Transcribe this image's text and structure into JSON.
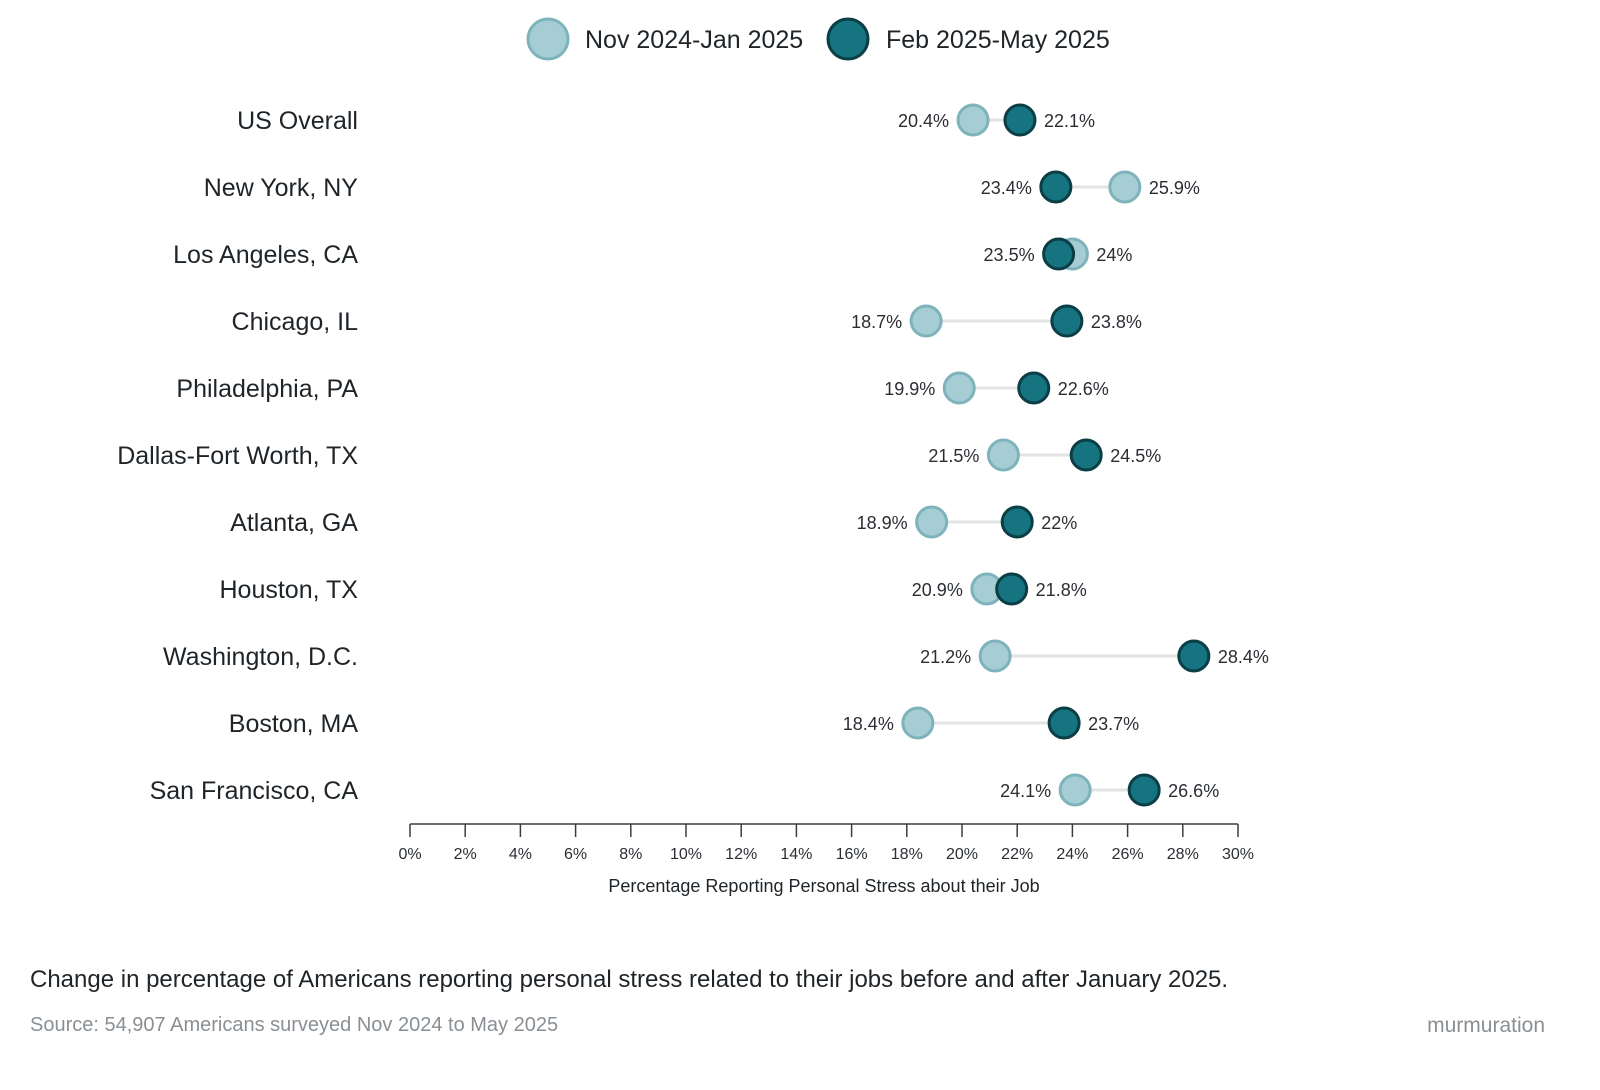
{
  "chart_data": {
    "type": "dumbbell",
    "xlabel": "Percentage Reporting Personal Stress about their Job",
    "xlim": [
      0,
      30
    ],
    "x_ticks": [
      "0%",
      "2%",
      "4%",
      "6%",
      "8%",
      "10%",
      "12%",
      "14%",
      "16%",
      "18%",
      "20%",
      "22%",
      "24%",
      "26%",
      "28%",
      "30%"
    ],
    "legend_position": "top-center",
    "series": [
      {
        "name": "Nov 2024-Jan 2025",
        "fill": "#a5cdd3",
        "stroke": "#7fb3bc"
      },
      {
        "name": "Feb 2025-May 2025",
        "fill": "#157480",
        "stroke": "#0b3e45"
      }
    ],
    "rows": [
      {
        "category": "US Overall",
        "before": 20.4,
        "after": 22.1,
        "before_label": "20.4%",
        "after_label": "22.1%"
      },
      {
        "category": "New York, NY",
        "before": 25.9,
        "after": 23.4,
        "before_label": "25.9%",
        "after_label": "23.4%"
      },
      {
        "category": "Los Angeles, CA",
        "before": 24.0,
        "after": 23.5,
        "before_label": "24%",
        "after_label": "23.5%"
      },
      {
        "category": "Chicago, IL",
        "before": 18.7,
        "after": 23.8,
        "before_label": "18.7%",
        "after_label": "23.8%"
      },
      {
        "category": "Philadelphia, PA",
        "before": 19.9,
        "after": 22.6,
        "before_label": "19.9%",
        "after_label": "22.6%"
      },
      {
        "category": "Dallas-Fort Worth, TX",
        "before": 21.5,
        "after": 24.5,
        "before_label": "21.5%",
        "after_label": "24.5%"
      },
      {
        "category": "Atlanta, GA",
        "before": 18.9,
        "after": 22.0,
        "before_label": "18.9%",
        "after_label": "22%"
      },
      {
        "category": "Houston, TX",
        "before": 20.9,
        "after": 21.8,
        "before_label": "20.9%",
        "after_label": "21.8%"
      },
      {
        "category": "Washington, D.C.",
        "before": 21.2,
        "after": 28.4,
        "before_label": "21.2%",
        "after_label": "28.4%"
      },
      {
        "category": "Boston, MA",
        "before": 18.4,
        "after": 23.7,
        "before_label": "18.4%",
        "after_label": "23.7%"
      },
      {
        "category": "San Francisco, CA",
        "before": 24.1,
        "after": 26.6,
        "before_label": "24.1%",
        "after_label": "26.6%"
      }
    ]
  },
  "caption": "Change in percentage of Americans reporting personal stress related to their jobs before and after January 2025.",
  "source": "Source: 54,907 Americans surveyed Nov 2024 to May 2025",
  "brand": "murmuration"
}
